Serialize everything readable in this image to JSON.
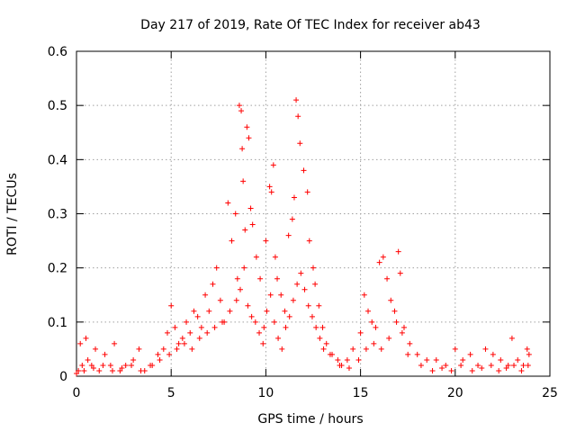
{
  "chart_data": {
    "type": "scatter",
    "title": "Day 217 of 2019, Rate Of TEC Index for receiver ab43",
    "xlabel": "GPS time / hours",
    "ylabel": "ROTI / TECUs",
    "xlim": [
      0,
      25
    ],
    "ylim": [
      0,
      0.6
    ],
    "xticks": [
      0,
      5,
      10,
      15,
      20,
      25
    ],
    "yticks": [
      0,
      0.1,
      0.2,
      0.3,
      0.4,
      0.5,
      0.6
    ],
    "xtick_labels": [
      "0",
      "5",
      "10",
      "15",
      "20",
      "25"
    ],
    "ytick_labels": [
      "0",
      "0.1",
      "0.2",
      "0.3",
      "0.4",
      "0.5",
      "0.6"
    ],
    "grid": true,
    "marker": "plus",
    "color": "#ff0000",
    "series": [
      {
        "x": [
          0.1,
          0.2,
          0.3,
          0.5,
          0.6,
          0.8,
          1.0,
          1.2,
          1.5,
          1.8,
          2.0,
          2.3,
          2.6,
          3.0,
          3.3,
          3.6,
          4.0,
          4.3,
          4.6,
          4.8,
          5.0,
          5.2,
          5.4,
          5.6,
          5.8,
          6.0,
          6.2,
          6.4,
          6.6,
          6.8,
          7.0,
          7.2,
          7.4,
          7.6,
          7.8,
          8.0,
          8.2,
          8.4,
          8.5,
          8.6,
          8.7,
          8.75,
          8.8,
          8.9,
          9.0,
          9.1,
          9.2,
          9.3,
          9.5,
          9.7,
          9.9,
          10.0,
          10.2,
          10.3,
          10.4,
          10.5,
          10.6,
          10.8,
          11.0,
          11.2,
          11.4,
          11.5,
          11.6,
          11.7,
          11.8,
          12.0,
          12.2,
          12.3,
          12.5,
          12.6,
          12.8,
          13.0,
          13.2,
          13.5,
          13.8,
          14.0,
          14.3,
          14.6,
          15.0,
          15.2,
          15.4,
          15.6,
          15.8,
          16.0,
          16.2,
          16.4,
          16.6,
          16.8,
          17.0,
          17.1,
          17.3,
          17.6,
          18.0,
          18.5,
          19.0,
          19.5,
          20.0,
          20.4,
          20.8,
          21.2,
          21.6,
          22.0,
          22.4,
          22.8,
          23.0,
          23.3,
          23.6,
          23.8,
          23.9,
          0.0,
          0.4,
          0.9,
          1.4,
          1.9,
          2.4,
          2.9,
          3.4,
          3.9,
          4.4,
          4.9,
          5.3,
          5.7,
          6.1,
          6.5,
          6.9,
          7.3,
          7.7,
          8.1,
          8.45,
          8.65,
          8.85,
          9.05,
          9.25,
          9.45,
          9.65,
          9.85,
          10.05,
          10.25,
          10.45,
          10.65,
          10.85,
          11.05,
          11.25,
          11.45,
          11.65,
          11.85,
          12.05,
          12.25,
          12.45,
          12.65,
          12.85,
          13.05,
          13.4,
          13.9,
          14.4,
          14.9,
          15.3,
          15.7,
          16.1,
          16.5,
          16.9,
          17.2,
          17.5,
          18.2,
          18.8,
          19.3,
          19.8,
          20.3,
          20.9,
          21.4,
          21.9,
          22.3,
          22.7,
          23.1,
          23.5,
          23.85
        ],
        "y": [
          0.01,
          0.06,
          0.02,
          0.07,
          0.03,
          0.02,
          0.05,
          0.01,
          0.04,
          0.02,
          0.06,
          0.01,
          0.02,
          0.03,
          0.05,
          0.01,
          0.02,
          0.04,
          0.05,
          0.08,
          0.13,
          0.09,
          0.06,
          0.07,
          0.1,
          0.08,
          0.12,
          0.11,
          0.09,
          0.15,
          0.12,
          0.17,
          0.2,
          0.14,
          0.1,
          0.32,
          0.25,
          0.3,
          0.18,
          0.5,
          0.49,
          0.42,
          0.36,
          0.27,
          0.46,
          0.44,
          0.31,
          0.28,
          0.22,
          0.18,
          0.09,
          0.25,
          0.35,
          0.34,
          0.39,
          0.22,
          0.18,
          0.15,
          0.12,
          0.26,
          0.29,
          0.33,
          0.51,
          0.48,
          0.43,
          0.38,
          0.34,
          0.25,
          0.2,
          0.17,
          0.13,
          0.09,
          0.06,
          0.04,
          0.03,
          0.02,
          0.03,
          0.05,
          0.08,
          0.15,
          0.12,
          0.1,
          0.09,
          0.21,
          0.22,
          0.18,
          0.14,
          0.12,
          0.23,
          0.19,
          0.09,
          0.06,
          0.04,
          0.03,
          0.03,
          0.02,
          0.05,
          0.03,
          0.04,
          0.02,
          0.05,
          0.04,
          0.03,
          0.02,
          0.07,
          0.03,
          0.02,
          0.05,
          0.04,
          0.005,
          0.01,
          0.015,
          0.02,
          0.01,
          0.015,
          0.02,
          0.01,
          0.02,
          0.03,
          0.04,
          0.05,
          0.06,
          0.05,
          0.07,
          0.08,
          0.09,
          0.1,
          0.12,
          0.14,
          0.16,
          0.2,
          0.13,
          0.11,
          0.1,
          0.08,
          0.06,
          0.12,
          0.15,
          0.1,
          0.07,
          0.05,
          0.09,
          0.11,
          0.14,
          0.17,
          0.19,
          0.16,
          0.13,
          0.11,
          0.09,
          0.07,
          0.05,
          0.04,
          0.02,
          0.015,
          0.03,
          0.05,
          0.06,
          0.05,
          0.07,
          0.1,
          0.08,
          0.04,
          0.02,
          0.01,
          0.015,
          0.01,
          0.02,
          0.01,
          0.015,
          0.02,
          0.01,
          0.015,
          0.02,
          0.01,
          0.02
        ]
      }
    ]
  }
}
